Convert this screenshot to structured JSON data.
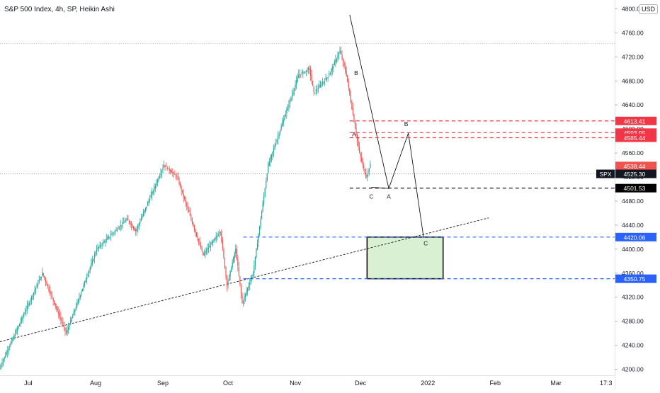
{
  "header": {
    "title": "S&P 500 Index, 4h, SP, Heikin Ashi",
    "currency": "USD"
  },
  "colors": {
    "up": "#26a69a",
    "down": "#ef5350",
    "resistance": "#f23645",
    "support": "#2962ff",
    "wave_line": "#131722",
    "zone_fill": "#d9f0d3",
    "axis_text": "#131722"
  },
  "chart_data": {
    "type": "candlestick",
    "title": "S&P 500 Index, 4h, SP, Heikin Ashi",
    "y_ticks": [
      "4200.00",
      "4240.00",
      "4280.00",
      "4320.00",
      "4360.00",
      "4400.00",
      "4440.00",
      "4480.00",
      "4520.00",
      "4560.00",
      "4600.00",
      "4640.00",
      "4680.00",
      "4720.00",
      "4760.00",
      "4800.00"
    ],
    "y_tick_values": [
      4200,
      4240,
      4280,
      4320,
      4360,
      4400,
      4440,
      4480,
      4520,
      4560,
      4600,
      4640,
      4680,
      4720,
      4760,
      4800
    ],
    "x_ticks": [
      "Jul",
      "Aug",
      "Sep",
      "Oct",
      "Nov",
      "Dec",
      "2022",
      "Feb",
      "Mar",
      "17:3"
    ],
    "x_tick_dates": [
      "2021-07-01",
      "2021-08-01",
      "2021-09-01",
      "2021-10-01",
      "2021-11-01",
      "2021-12-01",
      "2022-01-01",
      "2022-02-01",
      "2022-03-01",
      "2022-03-24"
    ],
    "ylim": [
      4190,
      4810
    ],
    "xlim": [
      "2021-06-18",
      "2022-03-28"
    ],
    "price_path": [
      {
        "date": "2021-06-18",
        "value": 4200
      },
      {
        "date": "2021-07-08",
        "value": 4360
      },
      {
        "date": "2021-07-19",
        "value": 4260
      },
      {
        "date": "2021-08-02",
        "value": 4400
      },
      {
        "date": "2021-08-16",
        "value": 4450
      },
      {
        "date": "2021-08-20",
        "value": 4430
      },
      {
        "date": "2021-09-02",
        "value": 4540
      },
      {
        "date": "2021-09-08",
        "value": 4520
      },
      {
        "date": "2021-09-20",
        "value": 4390
      },
      {
        "date": "2021-09-28",
        "value": 4430
      },
      {
        "date": "2021-10-01",
        "value": 4340
      },
      {
        "date": "2021-10-05",
        "value": 4400
      },
      {
        "date": "2021-10-08",
        "value": 4310
      },
      {
        "date": "2021-10-13",
        "value": 4360
      },
      {
        "date": "2021-10-20",
        "value": 4540
      },
      {
        "date": "2021-11-03",
        "value": 4690
      },
      {
        "date": "2021-11-08",
        "value": 4700
      },
      {
        "date": "2021-11-10",
        "value": 4660
      },
      {
        "date": "2021-11-17",
        "value": 4690
      },
      {
        "date": "2021-11-22",
        "value": 4730
      },
      {
        "date": "2021-11-25",
        "value": 4690
      },
      {
        "date": "2021-11-30",
        "value": 4580
      },
      {
        "date": "2021-12-01",
        "value": 4560
      },
      {
        "date": "2021-12-04",
        "value": 4520
      },
      {
        "date": "2021-12-06",
        "value": 4540
      }
    ],
    "horizontal_levels": [
      {
        "label": "4613.41",
        "value": 4613.41,
        "style": "resistance"
      },
      {
        "label": "4593.95",
        "value": 4593.95,
        "style": "resistance"
      },
      {
        "label": "4585.44",
        "value": 4585.44,
        "style": "resistance"
      },
      {
        "label": "4501.53",
        "value": 4501.53,
        "style": "black"
      },
      {
        "label": "4420.06",
        "value": 4420.06,
        "style": "support"
      },
      {
        "label": "4350.75",
        "value": 4350.75,
        "style": "support"
      }
    ],
    "price_labels": [
      {
        "label": "4538.44",
        "value": 4538.44,
        "style": "last-red"
      },
      {
        "label": "4525.30",
        "value": 4525.3,
        "style": "spx",
        "tag": "SPX"
      }
    ],
    "high_level": 4742,
    "trendline": {
      "start": {
        "date": "2021-06-18",
        "value": 4246
      },
      "end": {
        "date": "2022-01-29",
        "value": 4452
      }
    },
    "wave_labels": [
      {
        "text": "A",
        "date": "2021-11-28",
        "value": 4588
      },
      {
        "text": "B",
        "date": "2021-11-29",
        "value": 4690
      },
      {
        "text": "C",
        "date": "2021-12-06",
        "value": 4484
      },
      {
        "text": "A",
        "date": "2021-12-14",
        "value": 4484
      },
      {
        "text": "B",
        "date": "2021-12-22",
        "value": 4605
      },
      {
        "text": "C",
        "date": "2021-12-31",
        "value": 4406
      }
    ],
    "projection_path": [
      {
        "date": "2021-12-06",
        "value": 4503
      },
      {
        "date": "2021-12-14",
        "value": 4501
      },
      {
        "date": "2021-12-23",
        "value": 4593
      },
      {
        "date": "2021-12-30",
        "value": 4420
      }
    ],
    "descending_line": {
      "start": {
        "date": "2021-11-26",
        "value": 4790
      },
      "end": {
        "date": "2021-12-14",
        "value": 4501
      }
    },
    "target_zone": {
      "x_start": "2021-12-04",
      "x_end": "2022-01-08",
      "y_top": 4420.06,
      "y_bottom": 4350.75
    }
  }
}
